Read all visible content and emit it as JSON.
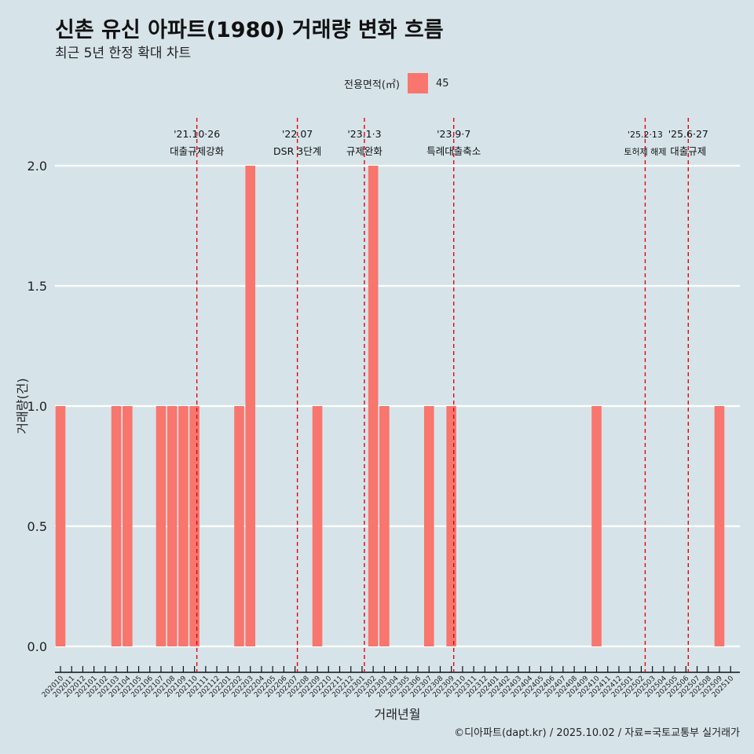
{
  "title": "신촌 유신 아파트(1980) 거래량 변화 흐름",
  "subtitle": "최근 5년 한정 확대 차트",
  "legend": {
    "title": "전용면적(㎡)",
    "items": [
      {
        "label": "45",
        "color": "#f8766d"
      }
    ]
  },
  "caption": "©디아파트(dapt.kr) / 2025.10.02 / 자료=국토교통부 실거래가",
  "chart_data": {
    "type": "bar",
    "xlabel": "거래년월",
    "ylabel": "거래량(건)",
    "ylim": [
      0,
      2
    ],
    "yticks": [
      "0.0",
      "0.5",
      "1.0",
      "1.5",
      "2.0"
    ],
    "categories": [
      "202010",
      "202011",
      "202012",
      "202101",
      "202102",
      "202103",
      "202104",
      "202105",
      "202106",
      "202107",
      "202108",
      "202109",
      "202110",
      "202111",
      "202112",
      "202201",
      "202202",
      "202203",
      "202204",
      "202205",
      "202206",
      "202207",
      "202208",
      "202209",
      "202210",
      "202211",
      "202212",
      "202301",
      "202302",
      "202303",
      "202304",
      "202305",
      "202306",
      "202307",
      "202308",
      "202309",
      "202310",
      "202311",
      "202312",
      "202401",
      "202402",
      "202403",
      "202404",
      "202405",
      "202406",
      "202407",
      "202408",
      "202409",
      "202410",
      "202411",
      "202412",
      "202501",
      "202502",
      "202503",
      "202504",
      "202505",
      "202506",
      "202507",
      "202508",
      "202509",
      "202510"
    ],
    "series": [
      {
        "name": "45",
        "color": "#f8766d",
        "values": [
          1,
          0,
          0,
          0,
          0,
          1,
          1,
          0,
          0,
          1,
          1,
          1,
          1,
          0,
          0,
          0,
          1,
          2,
          0,
          0,
          0,
          0,
          0,
          1,
          0,
          0,
          0,
          0,
          2,
          1,
          0,
          0,
          0,
          1,
          0,
          1,
          0,
          0,
          0,
          0,
          0,
          0,
          0,
          0,
          0,
          0,
          0,
          0,
          1,
          0,
          0,
          0,
          0,
          0,
          0,
          0,
          0,
          0,
          0,
          1,
          0
        ]
      }
    ],
    "annotations": [
      {
        "category": "202110",
        "date": "'21.10·26",
        "label": "대출규제강화",
        "small": false
      },
      {
        "category": "202207",
        "date": "'22.07",
        "label": "DSR 3단계",
        "small": false
      },
      {
        "category": "202301",
        "date": "'23.1·3",
        "label": "규제완화",
        "small": false
      },
      {
        "category": "202309",
        "date": "'23.9·7",
        "label": "특례대출축소",
        "small": false
      },
      {
        "category": "202502",
        "date": "'25.2·13",
        "label": "토허제 해제",
        "small": true
      },
      {
        "category": "202506",
        "date": "'25.6·27",
        "label": "대출규제",
        "small": false
      }
    ]
  }
}
